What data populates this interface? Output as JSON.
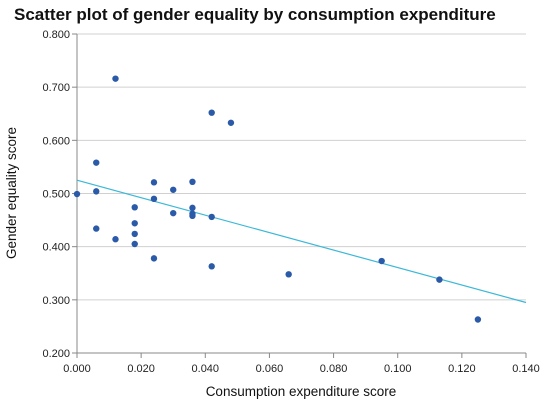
{
  "chart_data": {
    "type": "scatter",
    "title": "Scatter plot of gender equality by consumption expenditure",
    "xlabel": "Consumption expenditure score",
    "ylabel": "Gender equality score",
    "xlim": [
      0.0,
      0.14
    ],
    "ylim": [
      0.2,
      0.8
    ],
    "x_ticks": [
      "0.000",
      "0.020",
      "0.040",
      "0.060",
      "0.080",
      "0.100",
      "0.120",
      "0.140"
    ],
    "y_ticks": [
      "0.200",
      "0.300",
      "0.400",
      "0.500",
      "0.600",
      "0.700",
      "0.800"
    ],
    "grid": "horizontal",
    "point_color": "#2a5aa8",
    "trendline": {
      "color": "#3bb8d8",
      "x": [
        0.0,
        0.14
      ],
      "y": [
        0.525,
        0.295
      ]
    },
    "points": [
      {
        "x": 0.0,
        "y": 0.499
      },
      {
        "x": 0.006,
        "y": 0.558
      },
      {
        "x": 0.006,
        "y": 0.504
      },
      {
        "x": 0.006,
        "y": 0.434
      },
      {
        "x": 0.012,
        "y": 0.716
      },
      {
        "x": 0.012,
        "y": 0.414
      },
      {
        "x": 0.018,
        "y": 0.474
      },
      {
        "x": 0.018,
        "y": 0.444
      },
      {
        "x": 0.018,
        "y": 0.424
      },
      {
        "x": 0.018,
        "y": 0.405
      },
      {
        "x": 0.024,
        "y": 0.521
      },
      {
        "x": 0.024,
        "y": 0.49
      },
      {
        "x": 0.024,
        "y": 0.378
      },
      {
        "x": 0.03,
        "y": 0.507
      },
      {
        "x": 0.03,
        "y": 0.463
      },
      {
        "x": 0.036,
        "y": 0.522
      },
      {
        "x": 0.036,
        "y": 0.473
      },
      {
        "x": 0.036,
        "y": 0.462
      },
      {
        "x": 0.036,
        "y": 0.458
      },
      {
        "x": 0.042,
        "y": 0.652
      },
      {
        "x": 0.042,
        "y": 0.456
      },
      {
        "x": 0.042,
        "y": 0.363
      },
      {
        "x": 0.048,
        "y": 0.633
      },
      {
        "x": 0.066,
        "y": 0.348
      },
      {
        "x": 0.095,
        "y": 0.373
      },
      {
        "x": 0.113,
        "y": 0.338
      },
      {
        "x": 0.125,
        "y": 0.263
      }
    ]
  }
}
